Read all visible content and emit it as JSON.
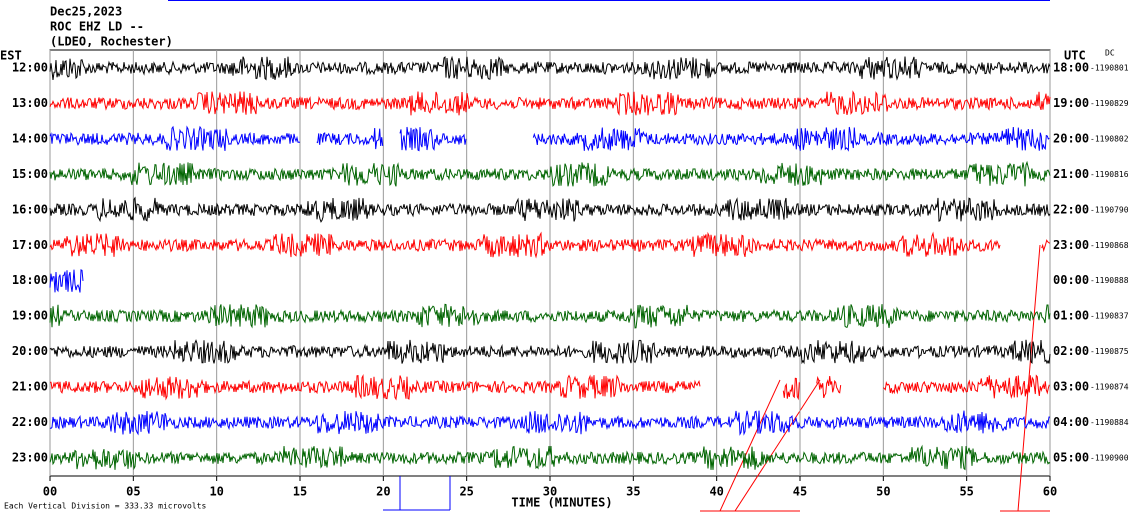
{
  "header": {
    "lines": [
      "Dec25,2023",
      "ROC EHZ LD --",
      "(LDEO, Rochester)"
    ]
  },
  "left_axis_title": "EST",
  "right_axis_title": "UTC",
  "dc_title": "DC",
  "xlim": [
    0,
    60
  ],
  "xticks": [
    {
      "value": 0,
      "label": "00"
    },
    {
      "value": 5,
      "label": "05"
    },
    10,
    15,
    20,
    25,
    30,
    35,
    40,
    45,
    50,
    55,
    60
  ],
  "x_axis_title": "TIME (MINUTES)",
  "footnote": "Each Vertical Division =  333.33 microvolts",
  "rows": [
    {
      "left": "12:00",
      "right": "18:00",
      "offset": "-1190801",
      "color": "#000000",
      "segments": [
        [
          0,
          60
        ]
      ]
    },
    {
      "left": "13:00",
      "right": "19:00",
      "offset": "-1190829",
      "color": "#ff0000",
      "segments": [
        [
          0,
          60
        ]
      ]
    },
    {
      "left": "14:00",
      "right": "20:00",
      "offset": "-1190802",
      "color": "#0000ff",
      "segments": [
        [
          0,
          15
        ],
        [
          16,
          20
        ],
        [
          21,
          25
        ],
        [
          29,
          60
        ]
      ]
    },
    {
      "left": "15:00",
      "right": "21:00",
      "offset": "-1190816",
      "color": "#006400",
      "segments": [
        [
          0,
          60
        ]
      ]
    },
    {
      "left": "16:00",
      "right": "22:00",
      "offset": "-1190790",
      "color": "#000000",
      "segments": [
        [
          0,
          60
        ]
      ]
    },
    {
      "left": "17:00",
      "right": "23:00",
      "offset": "-1190868",
      "color": "#ff0000",
      "segments": [
        [
          0,
          57
        ],
        [
          59.5,
          60
        ]
      ]
    },
    {
      "left": "18:00",
      "right": "00:00",
      "offset": "-1190888",
      "color": "#0000ff",
      "segments": [
        [
          0,
          2
        ]
      ]
    },
    {
      "left": "19:00",
      "right": "01:00",
      "offset": "-1190837",
      "color": "#006400",
      "segments": [
        [
          0,
          60
        ]
      ]
    },
    {
      "left": "20:00",
      "right": "02:00",
      "offset": "-1190875",
      "color": "#000000",
      "segments": [
        [
          0,
          60
        ]
      ]
    },
    {
      "left": "21:00",
      "right": "03:00",
      "offset": "-1190874",
      "color": "#ff0000",
      "segments": [
        [
          0,
          39
        ],
        [
          44,
          45
        ],
        [
          46,
          47.5
        ],
        [
          50,
          60
        ]
      ]
    },
    {
      "left": "22:00",
      "right": "04:00",
      "offset": "-1190884",
      "color": "#0000ff",
      "segments": [
        [
          0,
          60
        ]
      ]
    },
    {
      "left": "23:00",
      "right": "05:00",
      "offset": "-1190900",
      "color": "#006400",
      "segments": [
        [
          0,
          60
        ]
      ]
    }
  ]
}
